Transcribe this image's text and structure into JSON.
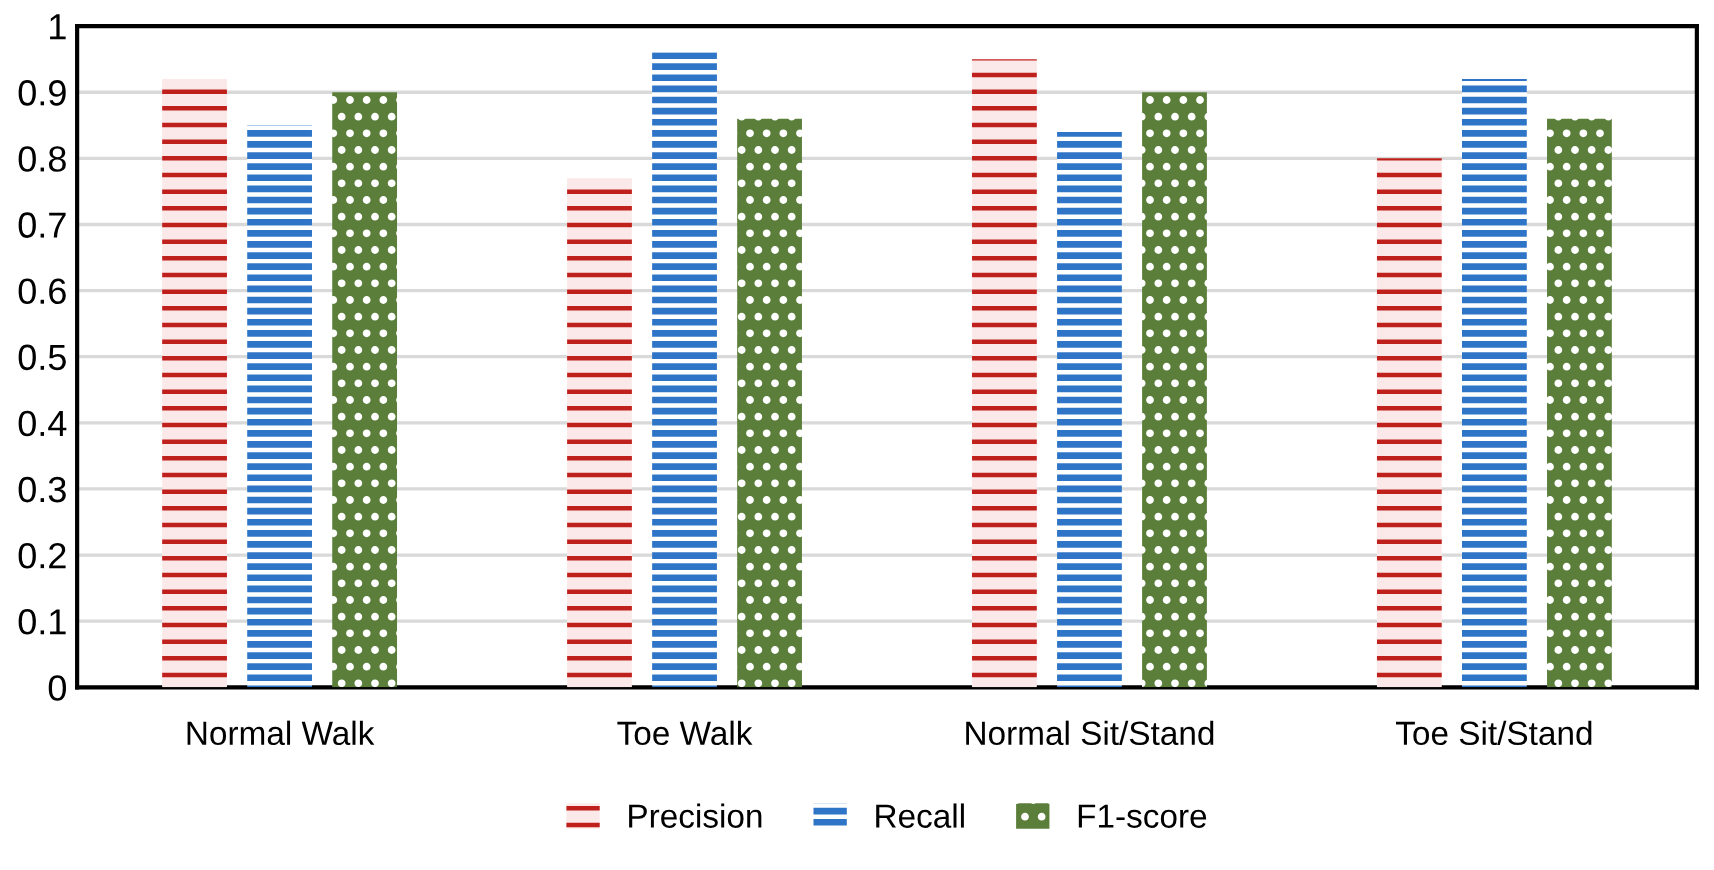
{
  "chart_data": {
    "type": "bar",
    "categories": [
      "Normal Walk",
      "Toe Walk",
      "Normal Sit/Stand",
      "Toe Sit/Stand"
    ],
    "series": [
      {
        "name": "Precision",
        "color": "#c0201c",
        "values": [
          0.92,
          0.77,
          0.95,
          0.8
        ]
      },
      {
        "name": "Recall",
        "color": "#2e75c8",
        "values": [
          0.85,
          0.96,
          0.84,
          0.92
        ]
      },
      {
        "name": "F1-score",
        "color": "#5b7f3a",
        "values": [
          0.9,
          0.86,
          0.9,
          0.86
        ]
      }
    ],
    "ylim": [
      0,
      1
    ],
    "yticks": [
      0,
      0.1,
      0.2,
      0.3,
      0.4,
      0.5,
      0.6,
      0.7,
      0.8,
      0.9,
      1
    ],
    "grid": "y",
    "legend": "bottom"
  }
}
